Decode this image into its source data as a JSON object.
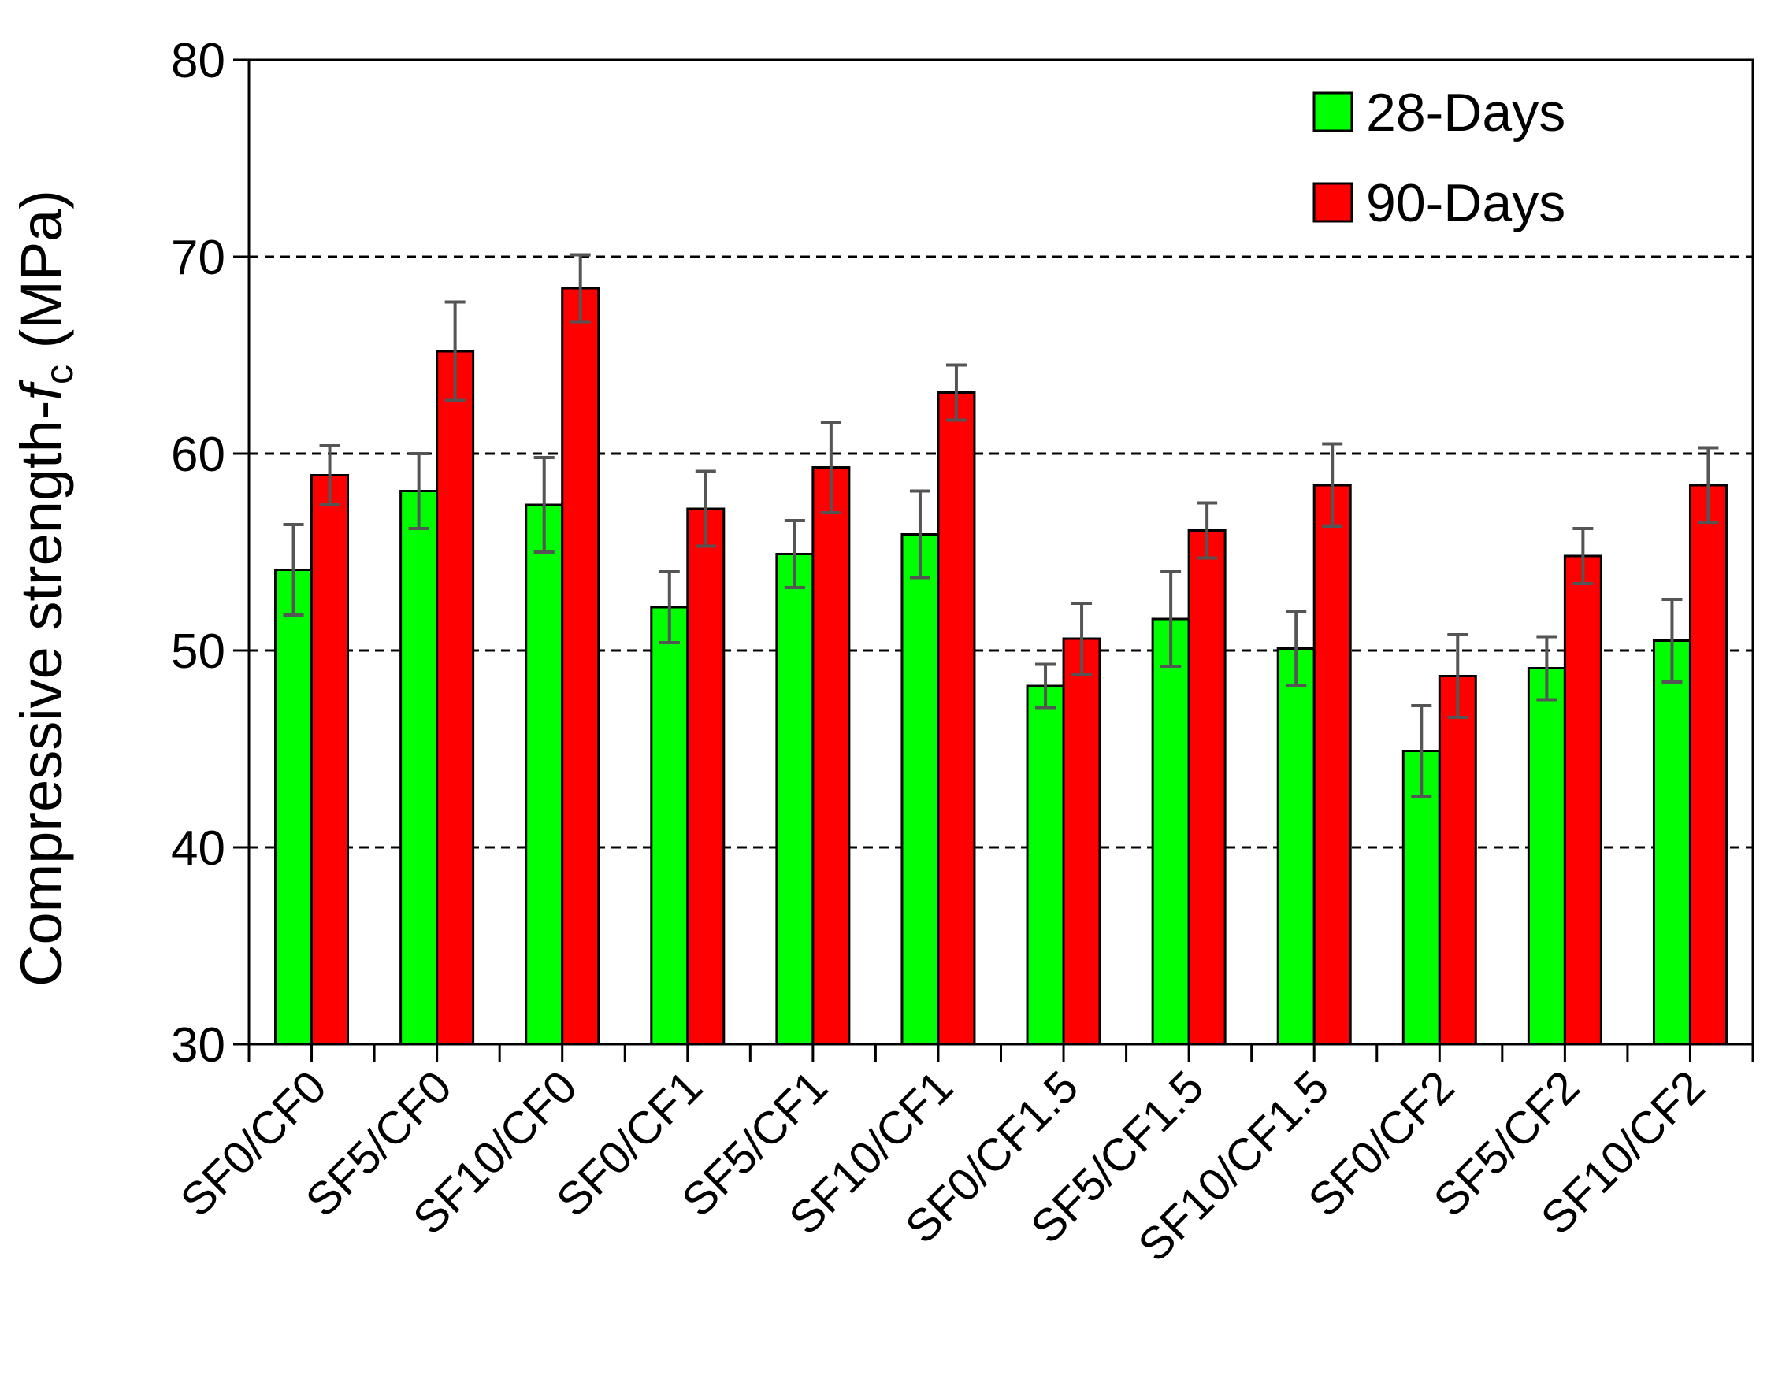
{
  "chart_data": {
    "type": "bar",
    "title": "",
    "xlabel": "",
    "ylabel": "Compressive strength-",
    "ylabel_italic": "f",
    "ylabel_subscript": "c",
    "ylabel_unit": " (MPa)",
    "ylim": [
      30,
      80
    ],
    "yticks": [
      30,
      40,
      50,
      60,
      70,
      80
    ],
    "gridlines": [
      40,
      50,
      60,
      70
    ],
    "grid": "dashed horizontal",
    "legend_position": "top-right",
    "categories": [
      "SF0/CF0",
      "SF5/CF0",
      "SF10/CF0",
      "SF0/CF1",
      "SF5/CF1",
      "SF10/CF1",
      "SF0/CF1.5",
      "SF5/CF1.5",
      "SF10/CF1.5",
      "SF0/CF2",
      "SF5/CF2",
      "SF10/CF2"
    ],
    "series": [
      {
        "name": "28-Days",
        "color": "#00ff00",
        "values": [
          54.1,
          58.1,
          57.4,
          52.2,
          54.9,
          55.9,
          48.2,
          51.6,
          50.1,
          44.9,
          49.1,
          50.5
        ],
        "errors": [
          2.3,
          1.9,
          2.4,
          1.8,
          1.7,
          2.2,
          1.1,
          2.4,
          1.9,
          2.3,
          1.6,
          2.1
        ]
      },
      {
        "name": "90-Days",
        "color": "#ff0000",
        "values": [
          58.9,
          65.2,
          68.4,
          57.2,
          59.3,
          63.1,
          50.6,
          56.1,
          58.4,
          48.7,
          54.8,
          58.4
        ],
        "errors": [
          1.5,
          2.5,
          1.7,
          1.9,
          2.3,
          1.4,
          1.8,
          1.4,
          2.1,
          2.1,
          1.4,
          1.9
        ]
      }
    ],
    "error_bar_color": "#555555"
  }
}
